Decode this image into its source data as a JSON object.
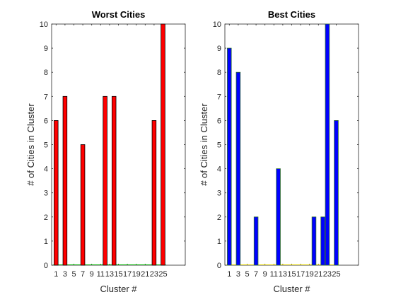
{
  "chart_data": [
    {
      "type": "bar",
      "title": "Worst Cities",
      "xlabel": "Cluster #",
      "ylabel": "# of Cities in Cluster",
      "x": [
        1,
        2,
        3,
        4,
        5,
        6,
        7,
        8,
        9,
        10,
        11,
        12,
        13,
        14,
        15,
        16,
        17,
        18,
        19,
        20,
        21,
        22,
        23,
        24,
        25
      ],
      "values": [
        6,
        0,
        7,
        0,
        0,
        0,
        5,
        0,
        0,
        0,
        0,
        7,
        0,
        7,
        0,
        0,
        0,
        0,
        0,
        0,
        0,
        0,
        6,
        0,
        10
      ],
      "xticks": [
        1,
        3,
        5,
        7,
        9,
        11,
        13,
        15,
        17,
        19,
        21,
        23,
        25
      ],
      "xlim": [
        0,
        30
      ],
      "ylim": [
        0,
        10
      ],
      "yticks": [
        0,
        1,
        2,
        3,
        4,
        5,
        6,
        7,
        8,
        9,
        10
      ],
      "bar_color": "#ff0000",
      "bar_edge_color": "#000000",
      "baseline_color": "#00b000"
    },
    {
      "type": "bar",
      "title": "Best Cities",
      "xlabel": "Cluster #",
      "ylabel": "# of Cities in Cluster",
      "x": [
        1,
        2,
        3,
        4,
        5,
        6,
        7,
        8,
        9,
        10,
        11,
        12,
        13,
        14,
        15,
        16,
        17,
        18,
        19,
        20,
        21,
        22,
        23,
        24,
        25
      ],
      "values": [
        9,
        0,
        8,
        0,
        0,
        0,
        2,
        0,
        0,
        0,
        0,
        4,
        0,
        0,
        0,
        0,
        0,
        0,
        0,
        2,
        0,
        2,
        10,
        0,
        6
      ],
      "xticks": [
        1,
        3,
        5,
        7,
        9,
        11,
        13,
        15,
        17,
        19,
        21,
        23,
        25
      ],
      "xlim": [
        0,
        30
      ],
      "ylim": [
        0,
        10
      ],
      "yticks": [
        0,
        1,
        2,
        3,
        4,
        5,
        6,
        7,
        8,
        9,
        10
      ],
      "bar_color": "#0000ff",
      "bar_edge_color": "#2a6a2a",
      "baseline_color": "#e0d000"
    }
  ]
}
